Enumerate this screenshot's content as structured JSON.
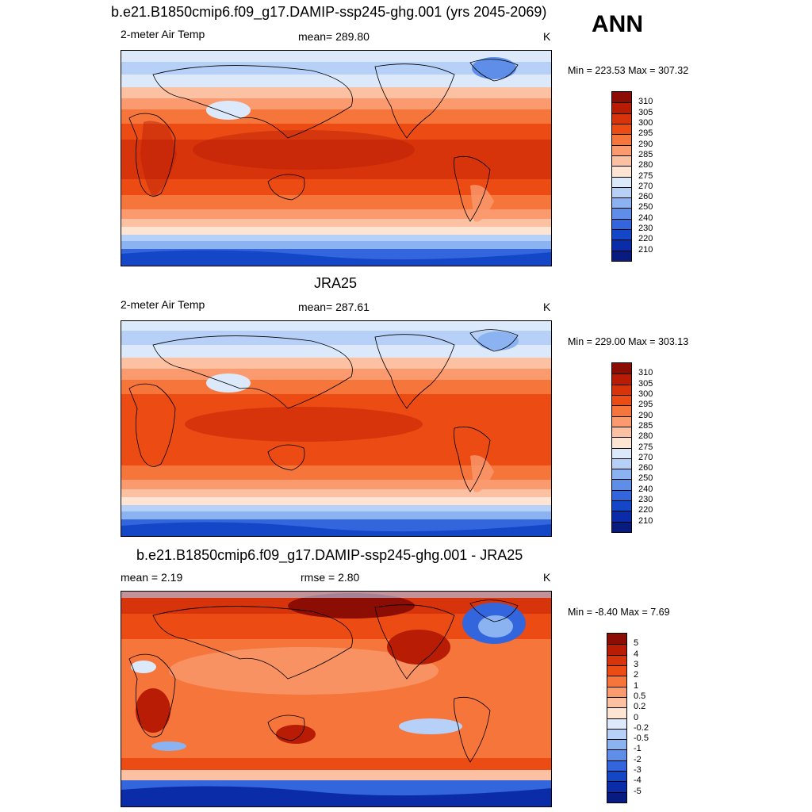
{
  "annual_label": "ANN",
  "panels": [
    {
      "title": "b.e21.B1850cmip6.f09_g17.DAMIP-ssp245-ghg.001 (yrs 2045-2069)",
      "left_header": "2-meter Air Temp",
      "center_header": "mean= 289.80",
      "units": "K",
      "minmax": "Min = 223.53 Max = 307.32",
      "colorbar": {
        "labels": [
          "310",
          "305",
          "300",
          "295",
          "290",
          "285",
          "280",
          "275",
          "270",
          "260",
          "250",
          "240",
          "230",
          "220",
          "210"
        ],
        "colors": [
          "#8c0d04",
          "#b81c05",
          "#d8340b",
          "#ec4c14",
          "#f6753b",
          "#fa9a6e",
          "#fcc1a3",
          "#fde4d3",
          "#dbe9fb",
          "#b6d0f7",
          "#8bb2f1",
          "#5e8ee8",
          "#3366dd",
          "#1446c8",
          "#0a2ca8",
          "#071b80"
        ]
      }
    },
    {
      "title": "JRA25",
      "left_header": "2-meter Air Temp",
      "center_header": "mean= 287.61",
      "units": "K",
      "minmax": "Min = 229.00 Max = 303.13",
      "colorbar": {
        "labels": [
          "310",
          "305",
          "300",
          "295",
          "290",
          "285",
          "280",
          "275",
          "270",
          "260",
          "250",
          "240",
          "230",
          "220",
          "210"
        ],
        "colors": [
          "#8c0d04",
          "#b81c05",
          "#d8340b",
          "#ec4c14",
          "#f6753b",
          "#fa9a6e",
          "#fcc1a3",
          "#fde4d3",
          "#dbe9fb",
          "#b6d0f7",
          "#8bb2f1",
          "#5e8ee8",
          "#3366dd",
          "#1446c8",
          "#0a2ca8",
          "#071b80"
        ]
      }
    },
    {
      "title": "b.e21.B1850cmip6.f09_g17.DAMIP-ssp245-ghg.001 - JRA25",
      "left_header": "mean =   2.19",
      "center_header": "rmse =   2.80",
      "units": "K",
      "minmax": "Min =  -8.40 Max =   7.69",
      "colorbar": {
        "labels": [
          "5",
          "4",
          "3",
          "2",
          "1",
          "0.5",
          "0.2",
          "0",
          "-0.2",
          "-0.5",
          "-1",
          "-2",
          "-3",
          "-4",
          "-5"
        ],
        "colors": [
          "#8c0d04",
          "#b81c05",
          "#d8340b",
          "#ec4c14",
          "#f6753b",
          "#fa9a6e",
          "#fcc1a3",
          "#fde4d3",
          "#dbe9fb",
          "#b6d0f7",
          "#8bb2f1",
          "#5e8ee8",
          "#3366dd",
          "#1446c8",
          "#0a2ca8",
          "#071b80"
        ]
      }
    }
  ]
}
